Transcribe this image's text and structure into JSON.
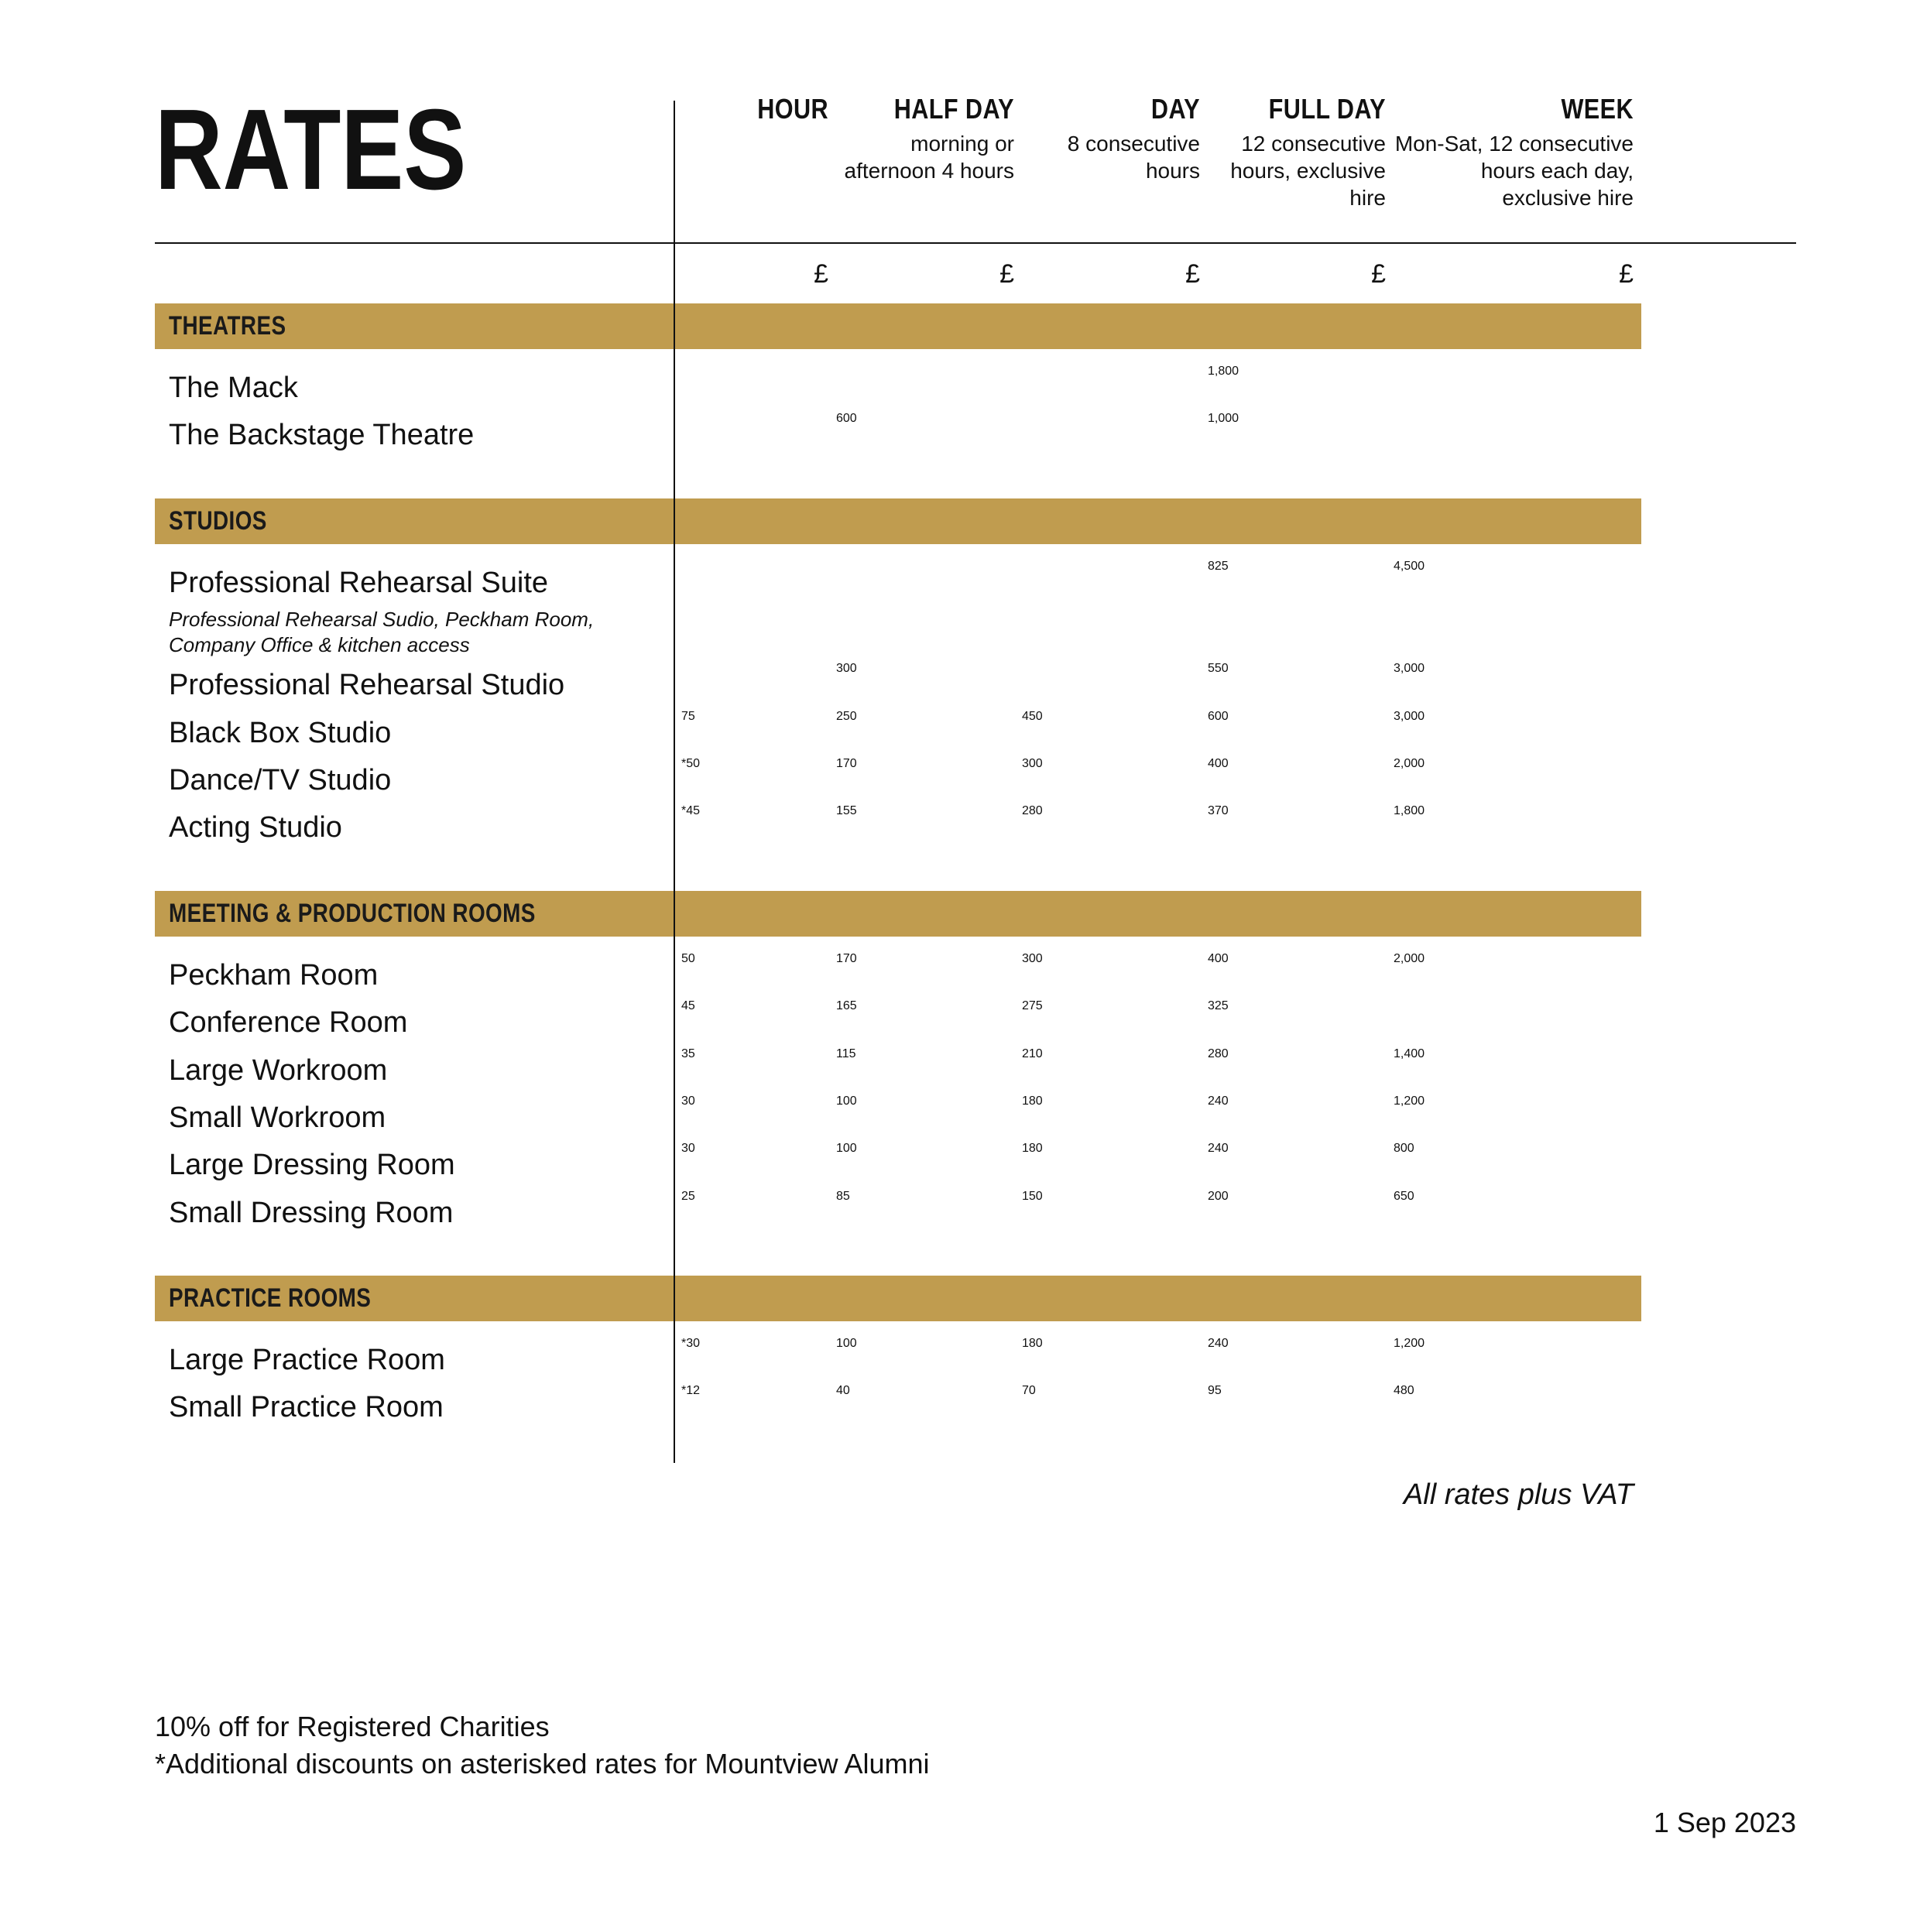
{
  "title": "RATES",
  "currency_symbol": "£",
  "colors": {
    "section_bar": "#c09c4f",
    "text": "#111111",
    "background": "#ffffff"
  },
  "columns": [
    {
      "label": "HOUR",
      "sub": ""
    },
    {
      "label": "HALF DAY",
      "sub": "morning or afternoon 4 hours"
    },
    {
      "label": "DAY",
      "sub": "8 consecutive hours"
    },
    {
      "label": "FULL DAY",
      "sub": "12 consecutive hours, exclusive hire"
    },
    {
      "label": "WEEK",
      "sub": "Mon-Sat, 12 consecutive hours each day, exclusive hire"
    }
  ],
  "sections": [
    {
      "title": "THEATRES",
      "rows": [
        {
          "label": "The Mack",
          "values": [
            "",
            "",
            "",
            "1,800",
            ""
          ]
        },
        {
          "label": "The Backstage Theatre",
          "values": [
            "",
            "600",
            "",
            "1,000",
            ""
          ]
        }
      ]
    },
    {
      "title": "STUDIOS",
      "rows": [
        {
          "label": "Professional Rehearsal Suite",
          "sublabel": "Professional Rehearsal Sudio, Peckham Room, Company Office & kitchen access",
          "values": [
            "",
            "",
            "",
            "825",
            "4,500"
          ]
        },
        {
          "label": "Professional Rehearsal Studio",
          "values": [
            "",
            "300",
            "",
            "550",
            "3,000"
          ]
        },
        {
          "label": "Black Box Studio",
          "values": [
            "75",
            "250",
            "450",
            "600",
            "3,000"
          ]
        },
        {
          "label": "Dance/TV Studio",
          "values": [
            "*50",
            "170",
            "300",
            "400",
            "2,000"
          ]
        },
        {
          "label": "Acting Studio",
          "values": [
            "*45",
            "155",
            "280",
            "370",
            "1,800"
          ]
        }
      ]
    },
    {
      "title": "MEETING & PRODUCTION ROOMS",
      "rows": [
        {
          "label": "Peckham Room",
          "values": [
            "50",
            "170",
            "300",
            "400",
            "2,000"
          ]
        },
        {
          "label": "Conference Room",
          "values": [
            "45",
            "165",
            "275",
            "325",
            ""
          ]
        },
        {
          "label": "Large Workroom",
          "values": [
            "35",
            "115",
            "210",
            "280",
            "1,400"
          ]
        },
        {
          "label": "Small Workroom",
          "values": [
            "30",
            "100",
            "180",
            "240",
            "1,200"
          ]
        },
        {
          "label": "Large Dressing Room",
          "values": [
            "30",
            "100",
            "180",
            "240",
            "800"
          ]
        },
        {
          "label": "Small Dressing Room",
          "values": [
            "25",
            "85",
            "150",
            "200",
            "650"
          ]
        }
      ]
    },
    {
      "title": "PRACTICE ROOMS",
      "rows": [
        {
          "label": "Large Practice Room",
          "values": [
            "*30",
            "100",
            "180",
            "240",
            "1,200"
          ]
        },
        {
          "label": "Small Practice Room",
          "values": [
            "*12",
            "40",
            "70",
            "95",
            "480"
          ]
        }
      ]
    }
  ],
  "vat_note": "All rates plus VAT",
  "footer_notes": [
    "10% off for Registered Charities",
    "*Additional discounts on asterisked rates for Mountview Alumni"
  ],
  "date": "1 Sep 2023"
}
